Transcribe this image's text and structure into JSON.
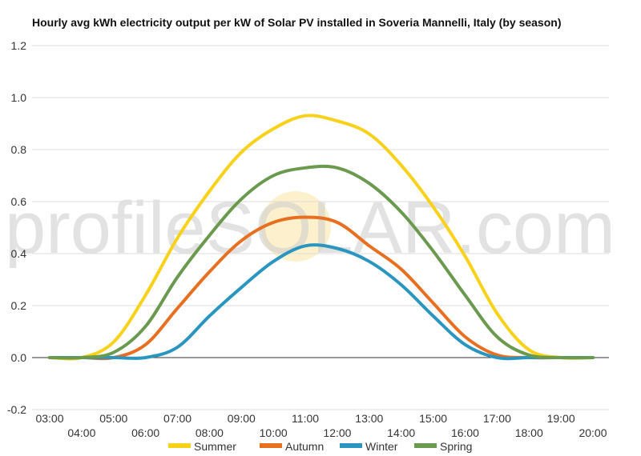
{
  "chart_data": {
    "type": "line",
    "title": "Hourly avg kWh electricity output per kW of Solar PV installed in Soveria Mannelli, Italy (by season)",
    "watermark_text": "profileSOLAR.com",
    "x": [
      "03:00",
      "04:00",
      "05:00",
      "06:00",
      "07:00",
      "08:00",
      "09:00",
      "10:00",
      "11:00",
      "12:00",
      "13:00",
      "14:00",
      "15:00",
      "16:00",
      "17:00",
      "18:00",
      "19:00",
      "20:00"
    ],
    "ylim": [
      -0.2,
      1.2
    ],
    "yticks": [
      -0.2,
      0.0,
      0.2,
      0.4,
      0.6,
      0.8,
      1.0,
      1.2
    ],
    "ytick_labels": [
      "-0.2",
      "0.0",
      "0.2",
      "0.4",
      "0.6",
      "0.8",
      "1.0",
      "1.2"
    ],
    "grid": true,
    "legend_position": "bottom",
    "series": [
      {
        "name": "Summer",
        "color": "#f7d11a",
        "values": [
          0.0,
          0.0,
          0.06,
          0.24,
          0.46,
          0.64,
          0.79,
          0.88,
          0.93,
          0.91,
          0.86,
          0.74,
          0.58,
          0.39,
          0.17,
          0.03,
          0.0,
          0.0
        ]
      },
      {
        "name": "Autumn",
        "color": "#e76f1f",
        "values": [
          0.0,
          0.0,
          0.0,
          0.05,
          0.19,
          0.33,
          0.45,
          0.52,
          0.54,
          0.52,
          0.43,
          0.34,
          0.21,
          0.08,
          0.01,
          0.0,
          0.0,
          0.0
        ]
      },
      {
        "name": "Winter",
        "color": "#2a96c0",
        "values": [
          0.0,
          0.0,
          0.0,
          0.0,
          0.04,
          0.16,
          0.27,
          0.37,
          0.43,
          0.42,
          0.37,
          0.28,
          0.16,
          0.05,
          0.0,
          0.0,
          0.0,
          0.0
        ]
      },
      {
        "name": "Spring",
        "color": "#6a9a4e",
        "values": [
          0.0,
          0.0,
          0.02,
          0.12,
          0.31,
          0.47,
          0.61,
          0.7,
          0.73,
          0.73,
          0.67,
          0.56,
          0.41,
          0.24,
          0.08,
          0.01,
          0.0,
          0.0
        ]
      }
    ]
  }
}
